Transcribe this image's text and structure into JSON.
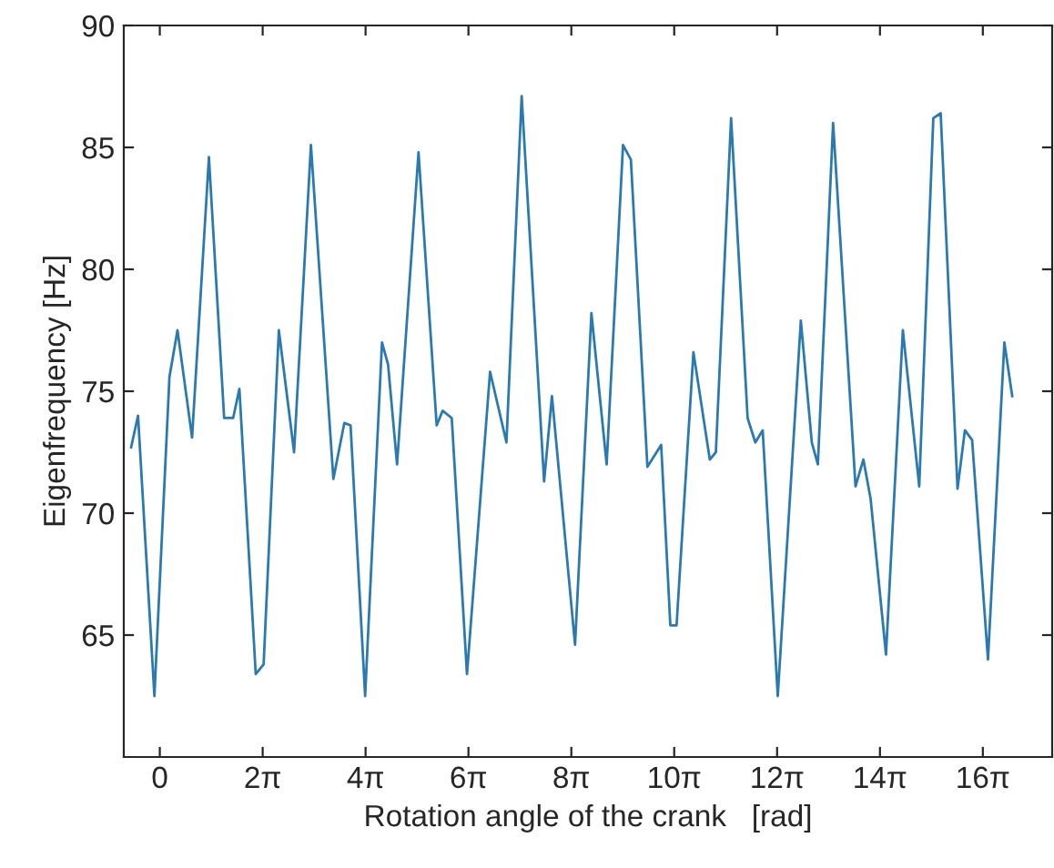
{
  "chart_data": {
    "type": "line",
    "xlabel": "Rotation angle of the crank   [rad]",
    "ylabel": "Eigenfrequency [Hz]",
    "xlim": [
      -2.2,
      54.5
    ],
    "ylim": [
      60,
      90
    ],
    "xticks": [
      {
        "value": 0,
        "label": "0"
      },
      {
        "value": 6.2832,
        "label": "2π"
      },
      {
        "value": 12.5664,
        "label": "4π"
      },
      {
        "value": 18.8496,
        "label": "6π"
      },
      {
        "value": 25.1327,
        "label": "8π"
      },
      {
        "value": 31.4159,
        "label": "10π"
      },
      {
        "value": 37.6991,
        "label": "12π"
      },
      {
        "value": 43.9823,
        "label": "14π"
      },
      {
        "value": 50.2655,
        "label": "16π"
      }
    ],
    "yticks": [
      65,
      70,
      75,
      80,
      85,
      90
    ],
    "grid": false,
    "legend": false,
    "marker": "none",
    "line_style": "solid",
    "series": [
      {
        "color": "#2a7ab0",
        "x": [
          -1.75,
          -1.33,
          -0.33,
          0.59,
          1.08,
          1.97,
          3.0,
          3.93,
          4.48,
          4.86,
          5.86,
          6.34,
          7.27,
          8.2,
          9.23,
          10.6,
          11.27,
          11.65,
          12.54,
          13.57,
          13.94,
          14.49,
          15.8,
          16.91,
          17.27,
          17.83,
          18.76,
          20.17,
          21.17,
          22.1,
          23.47,
          23.95,
          25.36,
          26.36,
          27.29,
          28.29,
          28.77,
          29.78,
          30.62,
          31.18,
          31.56,
          32.59,
          33.59,
          33.96,
          34.89,
          35.9,
          36.37,
          36.82,
          37.74,
          39.15,
          39.82,
          40.19,
          41.12,
          42.49,
          42.97,
          43.41,
          44.35,
          45.38,
          46.38,
          47.24,
          47.69,
          48.72,
          49.17,
          49.61,
          50.58,
          51.58,
          52.06
        ],
        "values": [
          72.7,
          74.0,
          62.5,
          75.6,
          77.5,
          73.1,
          84.6,
          73.9,
          73.9,
          75.1,
          63.4,
          63.8,
          77.5,
          72.5,
          85.1,
          71.4,
          73.7,
          73.6,
          62.5,
          77.0,
          76.1,
          72.0,
          84.8,
          73.6,
          74.2,
          73.9,
          63.4,
          75.8,
          72.9,
          87.1,
          71.3,
          74.8,
          64.6,
          78.2,
          72.0,
          85.1,
          84.5,
          71.9,
          72.8,
          65.4,
          65.4,
          76.6,
          72.2,
          72.5,
          86.2,
          73.9,
          72.9,
          73.4,
          62.5,
          77.9,
          72.9,
          72.0,
          86.0,
          71.1,
          72.2,
          70.6,
          64.2,
          77.5,
          71.1,
          86.2,
          86.4,
          71.0,
          73.4,
          73.0,
          64.0,
          77.0,
          74.8
        ]
      }
    ]
  }
}
